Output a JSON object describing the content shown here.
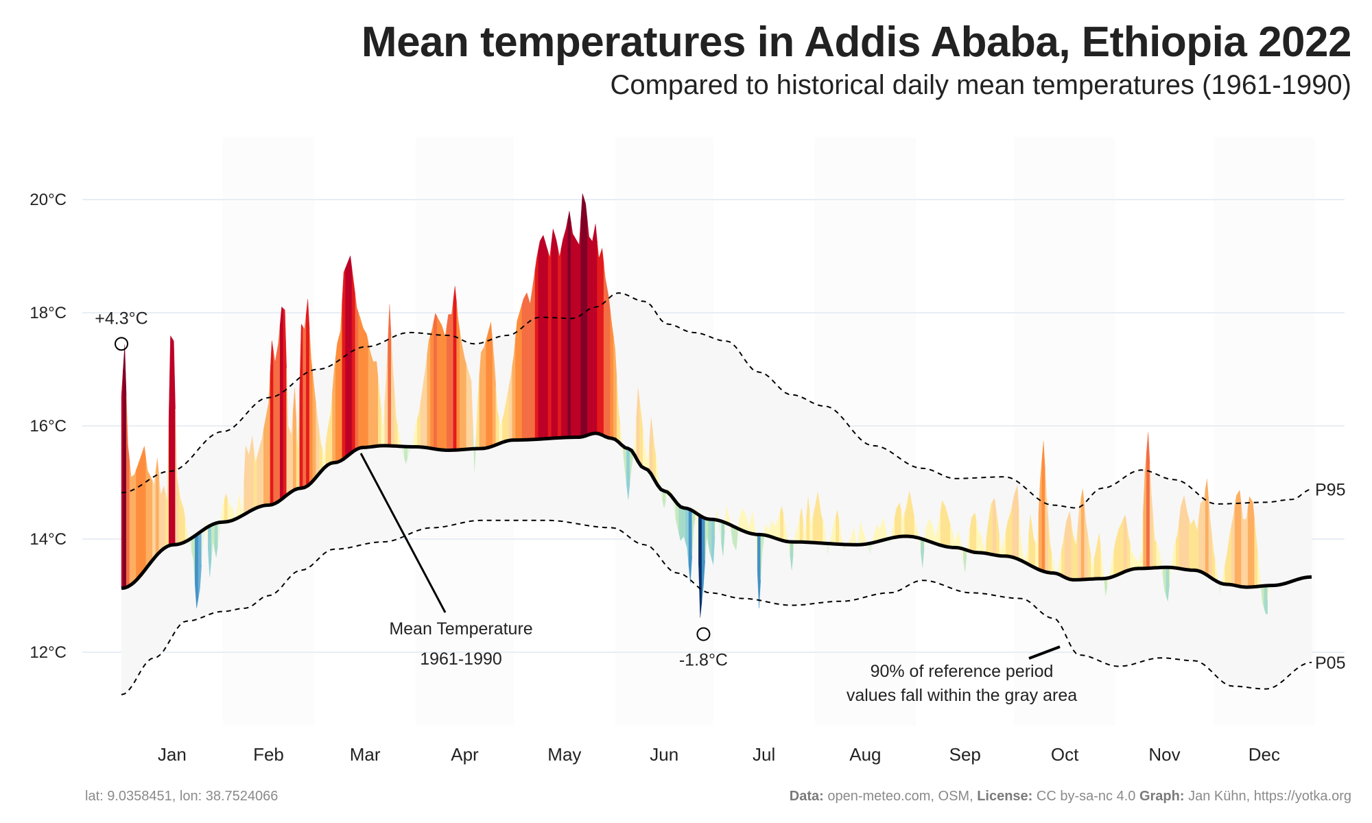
{
  "header": {
    "title": "Mean temperatures in Addis Ababa, Ethiopia 2022",
    "subtitle": "Compared to historical daily mean temperatures (1961-1990)"
  },
  "footer": {
    "coords": "lat: 9.0358451, lon: 38.7524066",
    "data_label": "Data:",
    "data_value": " open-meteo.com, OSM, ",
    "license_label": "License:",
    "license_value": " CC by-sa-nc 4.0  ",
    "graph_label": "Graph:",
    "graph_value": " Jan Kühn, https://yotka.org"
  },
  "colors": {
    "grid": "#e8edf5",
    "band": "#f7f7f7",
    "month_band": "#fcfcfc",
    "mean_line": "#000000",
    "warm_scale": [
      "#fff7bc",
      "#fee391",
      "#fdd49e",
      "#fdae61",
      "#fd8d3c",
      "#f46d43",
      "#e31a1c",
      "#bd0026",
      "#800026"
    ],
    "cool_scale": [
      "#e5f5e0",
      "#c7e9c0",
      "#a6dbc9",
      "#8fd0d6",
      "#6baed6",
      "#4292c6",
      "#2166ac",
      "#08306b"
    ]
  },
  "chart_data": {
    "type": "area",
    "title": "Mean temperatures in Addis Ababa, Ethiopia 2022",
    "subtitle": "Compared to historical daily mean temperatures (1961-1990)",
    "xlabel": "",
    "ylabel": "",
    "ylim": [
      10.6,
      21.0
    ],
    "yticks": [
      12,
      14,
      16,
      18,
      20
    ],
    "ytick_labels": [
      "12°C",
      "14°C",
      "16°C",
      "18°C",
      "20°C"
    ],
    "grid": true,
    "months": [
      "Jan",
      "Feb",
      "Mar",
      "Apr",
      "May",
      "Jun",
      "Jul",
      "Aug",
      "Sep",
      "Oct",
      "Nov",
      "Dec"
    ],
    "month_days": [
      31,
      28,
      31,
      30,
      31,
      30,
      31,
      31,
      30,
      31,
      30,
      31
    ],
    "reference_mean": {
      "name": "Mean Temperature 1961-1990",
      "points": [
        [
          0,
          13.13
        ],
        [
          16,
          13.9
        ],
        [
          31,
          14.3
        ],
        [
          45,
          14.6
        ],
        [
          55,
          14.9
        ],
        [
          65,
          15.35
        ],
        [
          74,
          15.62
        ],
        [
          80,
          15.65
        ],
        [
          90,
          15.63
        ],
        [
          100,
          15.57
        ],
        [
          110,
          15.6
        ],
        [
          120,
          15.75
        ],
        [
          140,
          15.8
        ],
        [
          145,
          15.87
        ],
        [
          150,
          15.78
        ],
        [
          155,
          15.6
        ],
        [
          160,
          15.25
        ],
        [
          166,
          14.85
        ],
        [
          172,
          14.55
        ],
        [
          180,
          14.35
        ],
        [
          195,
          14.08
        ],
        [
          205,
          13.95
        ],
        [
          225,
          13.9
        ],
        [
          240,
          14.05
        ],
        [
          255,
          13.85
        ],
        [
          262,
          13.76
        ],
        [
          270,
          13.7
        ],
        [
          285,
          13.4
        ],
        [
          291,
          13.28
        ],
        [
          300,
          13.3
        ],
        [
          311,
          13.48
        ],
        [
          320,
          13.5
        ],
        [
          328,
          13.45
        ],
        [
          338,
          13.2
        ],
        [
          344,
          13.15
        ],
        [
          352,
          13.18
        ],
        [
          364,
          13.33
        ]
      ]
    },
    "p95": {
      "name": "P95",
      "points": [
        [
          0,
          14.82
        ],
        [
          15,
          15.2
        ],
        [
          31,
          15.9
        ],
        [
          45,
          16.5
        ],
        [
          60,
          17.0
        ],
        [
          75,
          17.4
        ],
        [
          88,
          17.65
        ],
        [
          100,
          17.6
        ],
        [
          108,
          17.45
        ],
        [
          118,
          17.6
        ],
        [
          128,
          17.92
        ],
        [
          138,
          17.9
        ],
        [
          145,
          18.1
        ],
        [
          152,
          18.35
        ],
        [
          160,
          18.2
        ],
        [
          167,
          17.8
        ],
        [
          175,
          17.65
        ],
        [
          185,
          17.5
        ],
        [
          195,
          16.95
        ],
        [
          205,
          16.55
        ],
        [
          215,
          16.35
        ],
        [
          230,
          15.65
        ],
        [
          245,
          15.25
        ],
        [
          255,
          15.07
        ],
        [
          270,
          15.1
        ],
        [
          285,
          14.6
        ],
        [
          292,
          14.55
        ],
        [
          300,
          14.9
        ],
        [
          312,
          15.22
        ],
        [
          322,
          15.05
        ],
        [
          335,
          14.62
        ],
        [
          350,
          14.65
        ],
        [
          358,
          14.7
        ],
        [
          364,
          14.88
        ]
      ]
    },
    "p05": {
      "name": "P05",
      "points": [
        [
          0,
          11.25
        ],
        [
          10,
          11.9
        ],
        [
          20,
          12.55
        ],
        [
          31,
          12.72
        ],
        [
          38,
          12.78
        ],
        [
          45,
          13.0
        ],
        [
          55,
          13.45
        ],
        [
          65,
          13.82
        ],
        [
          80,
          13.95
        ],
        [
          95,
          14.2
        ],
        [
          110,
          14.33
        ],
        [
          130,
          14.33
        ],
        [
          150,
          14.2
        ],
        [
          160,
          13.9
        ],
        [
          170,
          13.4
        ],
        [
          180,
          13.05
        ],
        [
          190,
          12.95
        ],
        [
          205,
          12.83
        ],
        [
          220,
          12.9
        ],
        [
          235,
          13.05
        ],
        [
          245,
          13.27
        ],
        [
          260,
          13.05
        ],
        [
          275,
          12.95
        ],
        [
          285,
          12.6
        ],
        [
          293,
          11.95
        ],
        [
          305,
          11.75
        ],
        [
          318,
          11.9
        ],
        [
          328,
          11.85
        ],
        [
          340,
          11.4
        ],
        [
          350,
          11.35
        ],
        [
          364,
          11.82
        ]
      ]
    },
    "annotations": [
      {
        "label": "+4.3°C",
        "kind": "max-anomaly",
        "day": 1,
        "value": 17.45
      },
      {
        "label": "-1.8°C",
        "kind": "min-anomaly",
        "day": 179,
        "value": 12.32
      },
      {
        "label": "Mean Temperature",
        "label2": "1961-1990",
        "kind": "series-label"
      },
      {
        "label": "90% of reference period",
        "label2": "values fall within the gray area",
        "kind": "band-label"
      }
    ],
    "series_labels": [
      "P95",
      "P05"
    ],
    "daily_anomaly_2022": [
      3.4,
      4.3,
      2.5,
      1.9,
      1.9,
      2.0,
      2.1,
      2.2,
      1.7,
      1.5,
      1.3,
      1.7,
      1.0,
      1.1,
      0.8,
      3.7,
      3.6,
      1.2,
      0.8,
      0.6,
      0.2,
      -0.1,
      -0.4,
      -1.3,
      -1.0,
      -0.2,
      0.1,
      -0.9,
      -0.3,
      -0.6,
      -0.2,
      0.3,
      0.5,
      0.3,
      0.2,
      0.0,
      0.4,
      0.0,
      1.2,
      1.0,
      1.3,
      0.8,
      1.0,
      1.2,
      1.5,
      1.8,
      2.9,
      2.5,
      2.8,
      3.4,
      3.3,
      1.2,
      1.0,
      1.8,
      0.6,
      2.9,
      2.8,
      3.3,
      2.2,
      1.6,
      1.0,
      0.5,
      0.2,
      0.6,
      0.9,
      1.6,
      2.1,
      2.3,
      3.3,
      3.4,
      3.5,
      3.0,
      2.5,
      2.3,
      2.1,
      2.0,
      1.7,
      1.5,
      1.5,
      0.9,
      0.3,
      1.2,
      2.5,
      1.4,
      0.5,
      0.2,
      -0.1,
      -0.3,
      -0.1,
      0.0,
      0.4,
      0.6,
      1.0,
      1.4,
      1.9,
      2.1,
      2.4,
      2.3,
      2.2,
      2.0,
      2.4,
      2.4,
      2.9,
      2.3,
      1.9,
      1.6,
      1.4,
      1.2,
      -0.4,
      0.9,
      1.7,
      1.8,
      2.0,
      2.2,
      1.5,
      0.6,
      0.3,
      0.5,
      0.8,
      1.1,
      1.5,
      2.1,
      2.3,
      2.5,
      2.6,
      2.4,
      2.8,
      3.2,
      3.5,
      3.6,
      3.4,
      3.2,
      3.7,
      3.5,
      3.2,
      3.5,
      3.7,
      4.0,
      3.6,
      3.5,
      3.4,
      4.3,
      4.1,
      3.5,
      3.4,
      3.7,
      3.1,
      3.3,
      2.8,
      2.5,
      2.0,
      1.6,
      0.6,
      0.1,
      -0.4,
      -0.9,
      -0.3,
      0.2,
      1.3,
      0.9,
      0.4,
      0.1,
      1.0,
      0.6,
      0.3,
      -0.1,
      -0.3,
      0.0,
      0.1,
      -0.2,
      -0.4,
      -0.6,
      -0.5,
      -0.7,
      -1.3,
      -0.3,
      0.1,
      -1.8,
      -1.2,
      -0.3,
      -0.6,
      -0.8,
      0.2,
      -0.2,
      -0.6,
      0.3,
      0.1,
      -0.3,
      -0.4,
      0.2,
      0.4,
      0.3,
      0.1,
      0.4,
      0.0,
      -1.3,
      -0.3,
      0.2,
      0.1,
      0.3,
      0.2,
      0.4,
      0.6,
      0.3,
      0.0,
      -0.5,
      0.1,
      0.3,
      0.6,
      0.1,
      0.8,
      0.3,
      0.6,
      0.9,
      0.5,
      0.3,
      -0.2,
      0.1,
      0.4,
      0.6,
      0.2,
      -0.1,
      0.0,
      0.1,
      0.3,
      -0.1,
      0.4,
      0.2,
      0.0,
      -0.2,
      0.1,
      0.3,
      0.2,
      0.4,
      0.1,
      -0.1,
      0.2,
      0.5,
      0.6,
      0.3,
      0.5,
      0.8,
      0.5,
      0.2,
      0.0,
      -0.5,
      0.2,
      0.4,
      0.3,
      0.1,
      0.4,
      0.8,
      0.7,
      0.5,
      0.3,
      0.1,
      0.3,
      0.0,
      -0.4,
      0.2,
      0.6,
      0.7,
      0.4,
      0.3,
      0.0,
      0.5,
      0.9,
      1.0,
      0.6,
      0.1,
      0.3,
      0.6,
      0.8,
      1.1,
      1.3,
      0.4,
      0.0,
      0.2,
      0.9,
      0.5,
      0.4,
      1.6,
      2.3,
      1.3,
      0.5,
      0.2,
      -0.1,
      0.3,
      0.6,
      1.0,
      1.2,
      0.8,
      0.6,
      1.3,
      1.6,
      1.0,
      0.6,
      0.2,
      0.5,
      0.8,
      0.3,
      -0.3,
      0.0,
      0.3,
      0.6,
      0.8,
      0.9,
      1.0,
      0.6,
      0.3,
      0.2,
      0.1,
      0.3,
      1.7,
      2.4,
      1.3,
      0.5,
      0.4,
      0.1,
      -0.4,
      -0.6,
      0.0,
      0.4,
      0.6,
      1.1,
      1.3,
      1.0,
      0.8,
      0.9,
      0.7,
      1.2,
      1.3,
      1.7,
      1.0,
      0.5,
      0.2,
      -0.2,
      0.2,
      0.5,
      0.9,
      1.2,
      1.6,
      1.7,
      1.2,
      1.2,
      1.6,
      1.5,
      0.9,
      0.3,
      -0.3,
      -0.5
    ]
  }
}
